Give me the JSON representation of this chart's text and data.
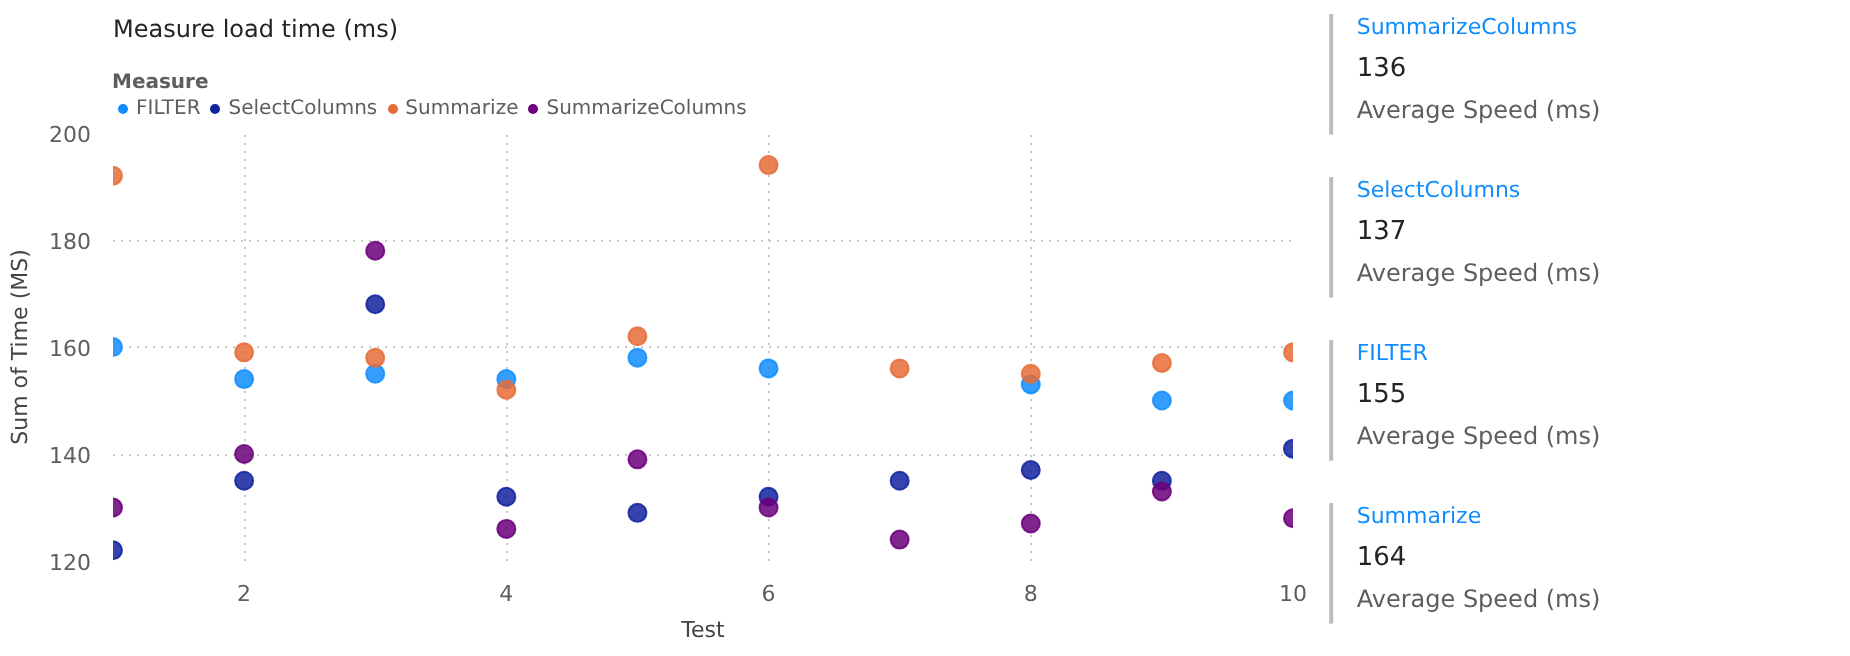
{
  "chart_data": [
    {
      "type": "scatter",
      "title": "Measure load time (ms)",
      "xlabel": "Test",
      "ylabel": "Sum of Time (MS)",
      "legend_title": "Measure",
      "legend": "top left",
      "marker": "circle",
      "grid": true,
      "x": [
        1,
        2,
        3,
        4,
        5,
        6,
        7,
        8,
        9,
        10
      ],
      "xlim": [
        1,
        10
      ],
      "xticks": [
        2,
        4,
        6,
        8,
        10
      ],
      "ylim": [
        120,
        200
      ],
      "yticks": [
        120,
        140,
        160,
        180,
        200
      ],
      "series": [
        {
          "name": "FILTER",
          "color": "#118dff",
          "values": [
            160,
            154,
            155,
            154,
            158,
            156,
            null,
            153,
            150,
            150
          ]
        },
        {
          "name": "SelectColumns",
          "color": "#12239e",
          "values": [
            122,
            135,
            168,
            132,
            129,
            132,
            135,
            137,
            135,
            141
          ]
        },
        {
          "name": "Summarize",
          "color": "#e66c37",
          "values": [
            192,
            159,
            158,
            152,
            162,
            194,
            156,
            155,
            157,
            159
          ]
        },
        {
          "name": "SummarizeColumns",
          "color": "#6b007b",
          "values": [
            130,
            140,
            178,
            126,
            139,
            130,
            124,
            127,
            133,
            128
          ]
        }
      ]
    },
    {
      "type": "other",
      "categories": [
        "SummarizeColumns",
        "SelectColumns",
        "FILTER",
        "Summarize"
      ],
      "values": [
        136,
        137,
        155,
        164
      ],
      "annotations": [
        "Average Speed (ms)",
        "Average Speed (ms)",
        "Average Speed (ms)",
        "Average Speed (ms)"
      ],
      "data_labels": true
    }
  ]
}
